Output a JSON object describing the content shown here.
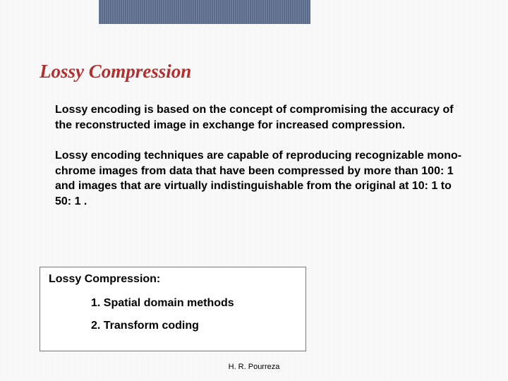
{
  "slide": {
    "title": "Lossy Compression",
    "title_color": "#b03030",
    "title_fontsize": 27,
    "body_fontsize": 16,
    "paragraphs": [
      "Lossy encoding is based on the concept of compromising the accuracy of the reconstructed image in exchange for increased compression.",
      "Lossy encoding techniques are capable of reproducing recognizable mono-chrome images from data that have been compressed by more than 100: 1 and images that are virtually indistinguishable from the original at 10: 1 to 50: 1 ."
    ],
    "box": {
      "title": "Lossy Compression:",
      "items": [
        "1. Spatial domain methods",
        "2. Transform coding"
      ],
      "fontsize": 16,
      "border_color": "#777777"
    },
    "footer": "H. R. Pourreza",
    "footer_fontsize": 11,
    "topbar_color": "#5a6b8c",
    "grid_color": "#e8e8e8",
    "background_color": "#ffffff"
  }
}
